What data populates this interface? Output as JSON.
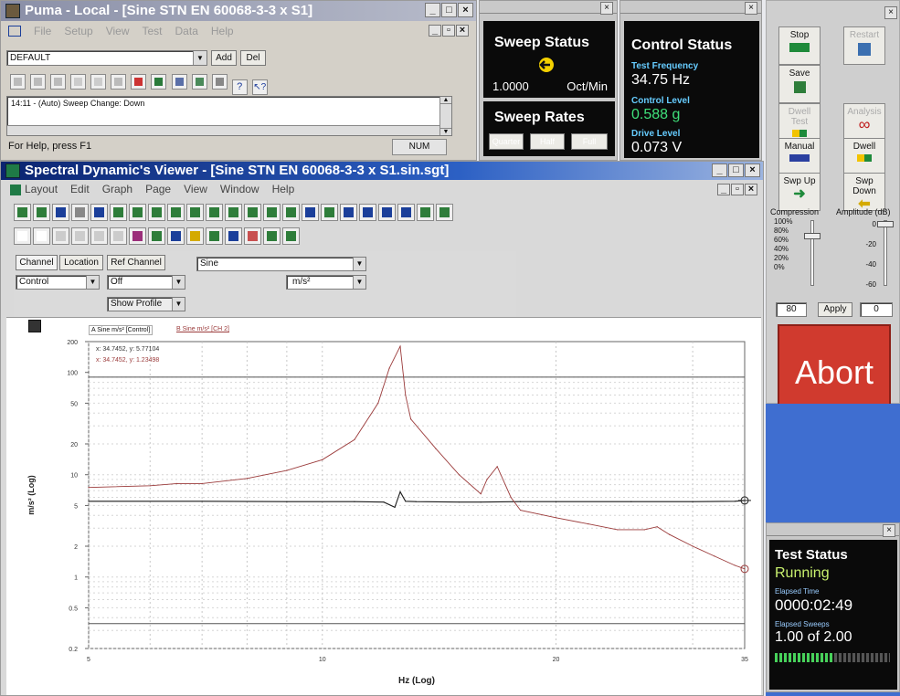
{
  "puma": {
    "title": "Puma - Local - [Sine STN EN 60068-3-3 x S1]",
    "menu": [
      "File",
      "Setup",
      "View",
      "Test",
      "Data",
      "Help"
    ],
    "profile_select": "DEFAULT",
    "add_label": "Add",
    "del_label": "Del",
    "log_line": "14:11 - (Auto) Sweep Change: Down",
    "status_help": "For Help, press F1",
    "status_num": "NUM"
  },
  "sweep_status": {
    "title": "Sweep Status",
    "rate_value": "1.0000",
    "rate_unit": "Oct/Min",
    "rates_title": "Sweep Rates",
    "quarter": "Quarter",
    "half": "Half",
    "full": "Full"
  },
  "control_status": {
    "title": "Control Status",
    "freq_label": "Test Frequency",
    "freq_value": "34.75 Hz",
    "level_label": "Control Level",
    "level_value": "0.588 g",
    "drive_label": "Drive Level",
    "drive_value": "0.073 V"
  },
  "side_panel": {
    "stop": "Stop",
    "restart": "Restart",
    "save": "Save",
    "dwell_test": "Dwell Test",
    "analysis": "Analysis",
    "manual": "Manual",
    "dwell": "Dwell",
    "swp_up": "Swp Up",
    "swp_down": "Swp Down",
    "compression_label": "Compression",
    "amplitude_label": "Amplitude (dB)",
    "compression_ticks": [
      "100%",
      "80%",
      "60%",
      "40%",
      "20%",
      "0%"
    ],
    "amplitude_ticks": [
      "0",
      "-20",
      "-40",
      "-60"
    ],
    "compression_value": "80",
    "apply": "Apply",
    "amplitude_value": "0",
    "abort": "Abort"
  },
  "test_status": {
    "title": "Test Status",
    "state": "Running",
    "elapsed_time_label": "Elapsed Time",
    "elapsed_time": "0000:02:49",
    "elapsed_sweeps_label": "Elapsed Sweeps",
    "elapsed_sweeps": "1.00 of 2.00",
    "progress_fraction": 0.5
  },
  "viewer": {
    "title": "Spectral Dynamic's Viewer - [Sine STN EN 60068-3-3 x S1.sin.sgt]",
    "menu": [
      "Layout",
      "Edit",
      "Graph",
      "Page",
      "View",
      "Window",
      "Help"
    ],
    "tab_channel": "Channel",
    "tab_location": "Location",
    "tab_ref": "Ref Channel",
    "channel_value": "Control",
    "ref_value": "Off",
    "type_value": "Sine",
    "unit_value": "m/s²",
    "show_profile": "Show Profile",
    "legend_a": "A Sine m/s² [Control]",
    "legend_b": "B Sine m/s² [CH 2]",
    "readout_a": "x: 34.7452, y: 5.77104",
    "readout_b": "x: 34.7452, y: 1.23498"
  },
  "chart_data": {
    "type": "line",
    "xlabel": "Hz (Log)",
    "ylabel": "m/s² (Log)",
    "x_scale": "log",
    "y_scale": "log",
    "xlim": [
      5,
      35
    ],
    "ylim": [
      0.2,
      200
    ],
    "x_ticks": [
      "5",
      "10",
      "20",
      "35"
    ],
    "y_ticks": [
      "200",
      "100",
      "50",
      "20",
      "10",
      "5",
      "2",
      "1",
      "0.5",
      "0.2"
    ],
    "limit_lines": [
      90,
      0.35
    ],
    "grid": true,
    "series": [
      {
        "name": "A Sine m/s² [Control]",
        "color": "#1a1a1a",
        "x": [
          5,
          7,
          9,
          11,
          12,
          12.4,
          12.6,
          12.8,
          13.2,
          15,
          16,
          18,
          20,
          25,
          30,
          34,
          35
        ],
        "y": [
          5.5,
          5.5,
          5.45,
          5.45,
          5.4,
          4.8,
          6.8,
          5.5,
          5.45,
          5.4,
          5.4,
          5.45,
          5.45,
          5.45,
          5.45,
          5.5,
          5.6
        ]
      },
      {
        "name": "B Sine m/s² [CH 2]",
        "color": "#9b3b3b",
        "x": [
          5,
          6,
          6.5,
          7,
          8,
          9,
          10,
          11,
          11.8,
          12.2,
          12.6,
          12.8,
          13,
          14,
          15,
          16,
          16.3,
          16.8,
          17.5,
          18,
          20,
          22,
          24,
          26,
          27,
          28,
          30,
          32,
          34,
          35
        ],
        "y": [
          7.5,
          7.8,
          8.2,
          8.2,
          9.2,
          11,
          14,
          22,
          50,
          110,
          180,
          60,
          35,
          18,
          10,
          6.5,
          9,
          12,
          6,
          4.5,
          3.8,
          3.3,
          2.9,
          2.9,
          3.1,
          2.6,
          2.0,
          1.6,
          1.3,
          1.2
        ]
      }
    ]
  }
}
